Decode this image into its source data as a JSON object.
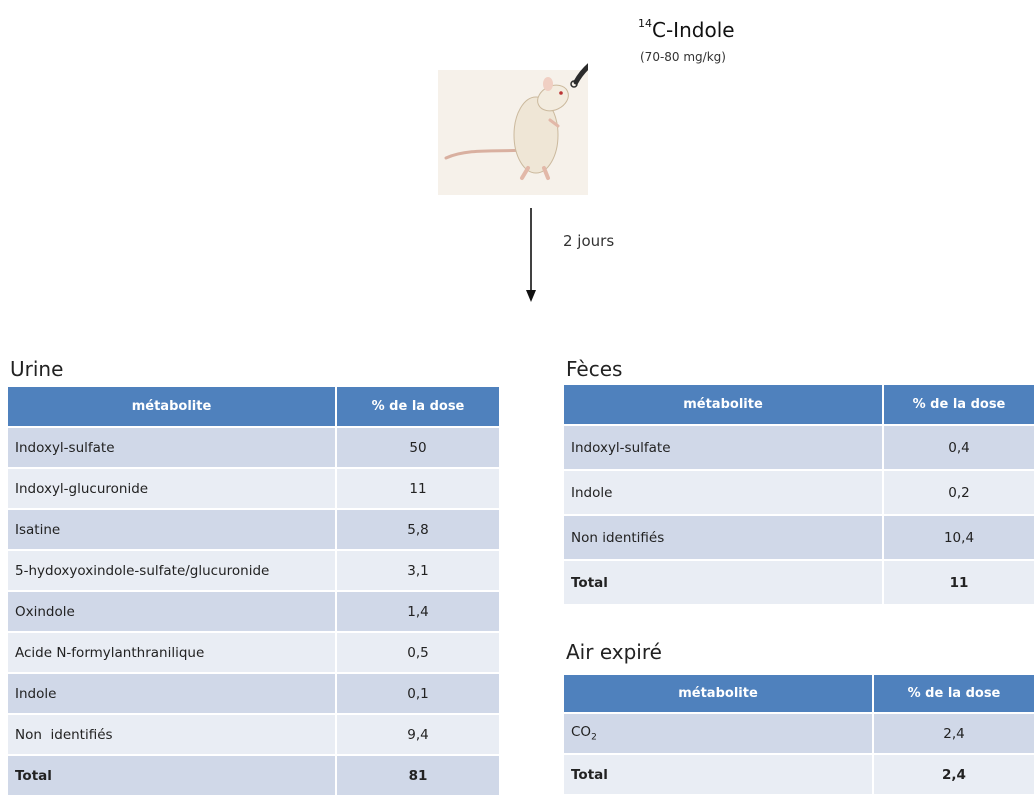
{
  "header": {
    "isotope": "14",
    "compound": "C-Indole",
    "dose": "(70-80 mg/kg)",
    "duration": "2 jours"
  },
  "column_headers": {
    "metabolite": "métabolite",
    "dose_percent": "% de la dose"
  },
  "urine": {
    "title": "Urine",
    "rows": [
      {
        "metabolite": "Indoxyl-sulfate",
        "value": "50"
      },
      {
        "metabolite": "Indoxyl-glucuronide",
        "value": "11"
      },
      {
        "metabolite": "Isatine",
        "value": "5,8"
      },
      {
        "metabolite": "5-hydoxyoxindole-sulfate/glucuronide",
        "value": "3,1"
      },
      {
        "metabolite": "Oxindole",
        "value": "1,4"
      },
      {
        "metabolite": "Acide N-formylanthranilique",
        "value": "0,5"
      },
      {
        "metabolite": "Indole",
        "value": "0,1"
      },
      {
        "metabolite": "Non  identifiés",
        "value": "9,4"
      }
    ],
    "total": {
      "label": "Total",
      "value": "81"
    }
  },
  "feces": {
    "title": "Fèces",
    "rows": [
      {
        "metabolite": "Indoxyl-sulfate",
        "value": "0,4"
      },
      {
        "metabolite": "Indole",
        "value": "0,2"
      },
      {
        "metabolite": "Non identifiés",
        "value": "10,4"
      }
    ],
    "total": {
      "label": "Total",
      "value": "11"
    }
  },
  "air": {
    "title": "Air expiré",
    "rows": [
      {
        "metabolite": "CO",
        "subscript": "2",
        "value": "2,4"
      }
    ],
    "total": {
      "label": "Total",
      "value": "2,4"
    }
  },
  "colors": {
    "header_blue": "#4f81bd",
    "row_dark": "#d0d8e8",
    "row_light": "#e9edf4"
  },
  "icons": {
    "animal": "rat-illustration",
    "syringe": "injection-tube-icon",
    "arrow": "arrow-down-icon"
  }
}
